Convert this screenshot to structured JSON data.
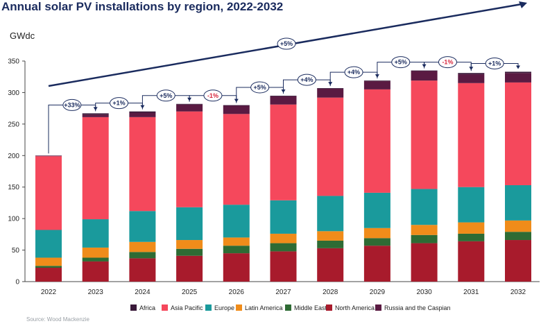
{
  "chart_data": {
    "type": "bar",
    "stacked": true,
    "title": "Annual solar PV installations by region, 2022-2032",
    "ylabel": "GWdc",
    "ylim": [
      0,
      350
    ],
    "yticks": [
      0,
      50,
      100,
      150,
      200,
      250,
      300,
      350
    ],
    "categories": [
      "2022",
      "2023",
      "2024",
      "2025",
      "2026",
      "2027",
      "2028",
      "2029",
      "2030",
      "2031",
      "2032"
    ],
    "series": [
      {
        "name": "North America",
        "color": "#a81b2c",
        "values": [
          22,
          32,
          37,
          41,
          45,
          48,
          53,
          57,
          61,
          64,
          66
        ]
      },
      {
        "name": "Middle East",
        "color": "#2e6b34",
        "values": [
          3,
          6,
          10,
          11,
          12,
          13,
          12,
          12,
          13,
          12,
          13
        ]
      },
      {
        "name": "Latin America",
        "color": "#f08c1a",
        "values": [
          13,
          16,
          16,
          14,
          13,
          15,
          15,
          16,
          16,
          18,
          18
        ]
      },
      {
        "name": "Europe",
        "color": "#1a9a9c",
        "values": [
          44,
          45,
          49,
          52,
          52,
          53,
          56,
          56,
          57,
          56,
          56
        ]
      },
      {
        "name": "Asia Pacific",
        "color": "#f5485c",
        "values": [
          117,
          162,
          149,
          152,
          144,
          152,
          156,
          164,
          172,
          165,
          163
        ]
      },
      {
        "name": "Russia and the Caspian",
        "color": "#5a1a42",
        "values": [
          1,
          4,
          7,
          11,
          13,
          13,
          14,
          13,
          15,
          14,
          15
        ]
      },
      {
        "name": "Africa",
        "color": "#3a1a3a",
        "values": [
          0,
          2,
          2,
          1,
          1,
          1,
          1,
          1,
          1,
          2,
          2
        ]
      }
    ],
    "growth_labels": [
      "+33%",
      "+1%",
      "+5%",
      "-1%",
      "+5%",
      "+4%",
      "+4%",
      "+5%",
      "-1%",
      "+1%"
    ],
    "overall_label": "+5%",
    "legend": [
      "Africa",
      "Asia Pacific",
      "Europe",
      "Latin America",
      "Middle East",
      "North America",
      "Russia and the Caspian"
    ],
    "legend_position": "bottom",
    "grid": false
  },
  "colors": {
    "axis": "#444444",
    "connector": "#1a2b5e",
    "badge_border": "#1a2b5e",
    "positive": "#1a2b5e",
    "negative": "#d7263d",
    "legend_swatches": {
      "Africa": "#3a1a3a",
      "Asia Pacific": "#f5485c",
      "Europe": "#1a9a9c",
      "Latin America": "#f08c1a",
      "Middle East": "#2e6b34",
      "North America": "#a81b2c",
      "Russia and the Caspian": "#5a1a42"
    }
  },
  "source": "Source: Wood Mackenzie"
}
